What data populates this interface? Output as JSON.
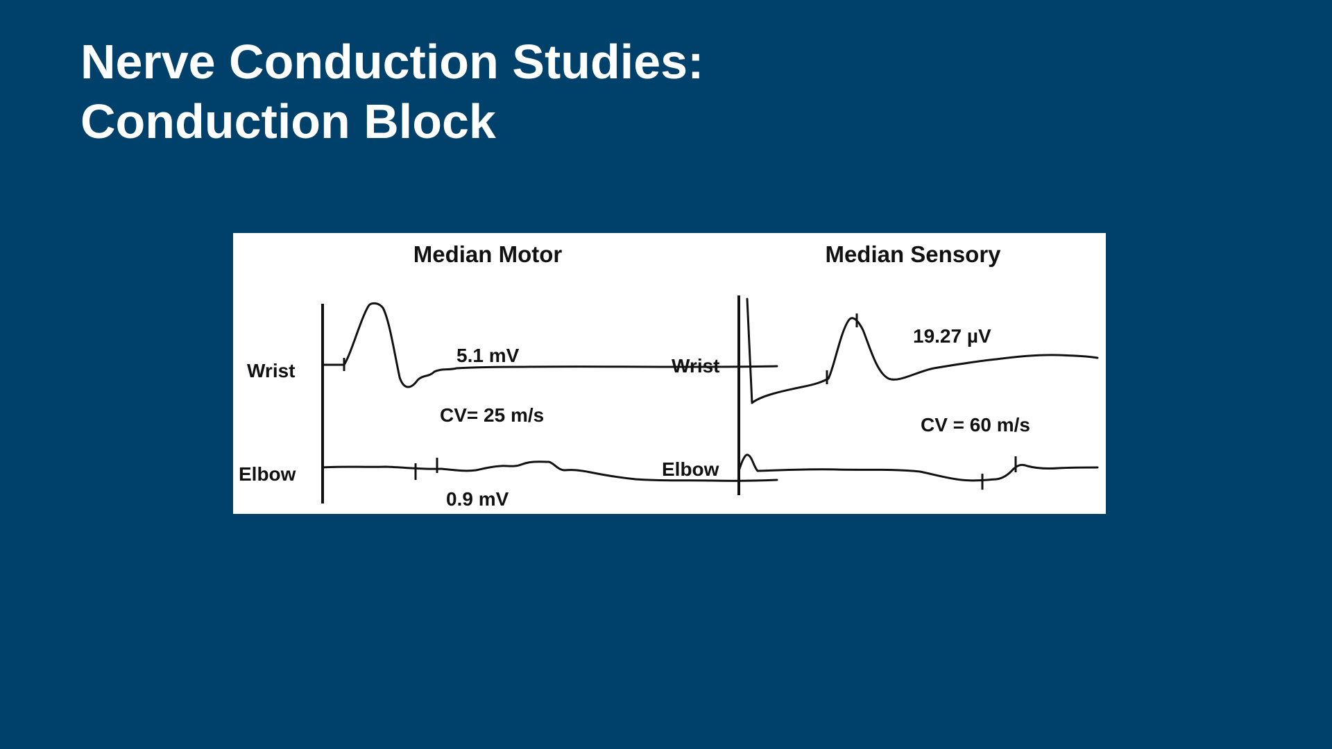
{
  "slide": {
    "title_line1": "Nerve Conduction Studies:",
    "title_line2": "Conduction Block",
    "background_color": "#00416b",
    "text_color": "#ffffff"
  },
  "figure": {
    "motor": {
      "heading": "Median Motor",
      "wrist_label": "Wrist",
      "elbow_label": "Elbow",
      "wrist_amplitude": "5.1 mV",
      "conduction_velocity": "CV= 25 m/s",
      "elbow_amplitude": "0.9 mV"
    },
    "sensory": {
      "heading": "Median Sensory",
      "wrist_label": "Wrist",
      "elbow_label": "Elbow",
      "wrist_amplitude": "19.27 µV",
      "conduction_velocity": "CV = 60 m/s"
    }
  }
}
